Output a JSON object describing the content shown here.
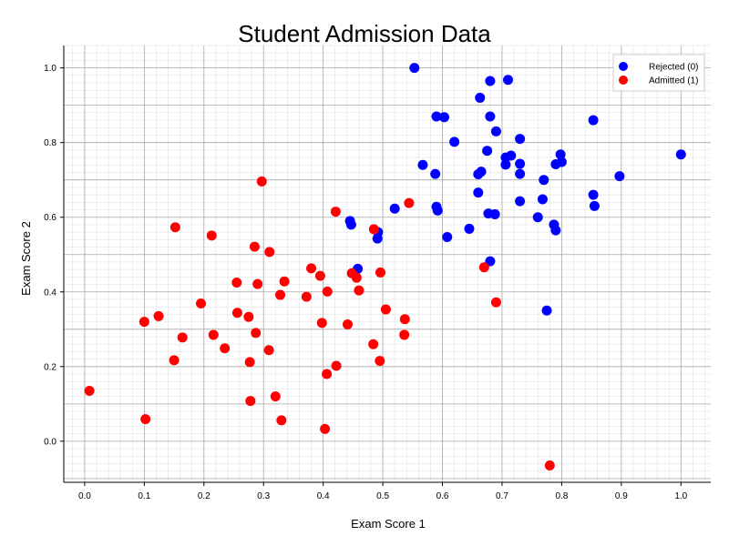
{
  "chart_data": {
    "type": "scatter",
    "title": "Student Admission Data",
    "xlabel": "Exam Score 1",
    "ylabel": "Exam Score 2",
    "xlim": [
      -0.035,
      1.05
    ],
    "ylim": [
      -0.11,
      1.06
    ],
    "xticks": [
      0.0,
      0.1,
      0.2,
      0.3,
      0.4,
      0.5,
      0.6,
      0.7,
      0.8,
      0.9,
      1.0
    ],
    "yticks": [
      0.0,
      0.2,
      0.4,
      0.6,
      0.8,
      1.0
    ],
    "xtick_labels": [
      "0.0",
      "0.1",
      "0.2",
      "0.3",
      "0.4",
      "0.5",
      "0.6",
      "0.7",
      "0.8",
      "0.9",
      "1.0"
    ],
    "ytick_labels": [
      "0.0",
      "0.2",
      "0.4",
      "0.6",
      "0.8",
      "1.0"
    ],
    "grid": true,
    "minor_grid": true,
    "legend_position": "top-right",
    "series": [
      {
        "name": "Rejected (0)",
        "color": "#0000ff",
        "points": [
          [
            0.553,
            1.0
          ],
          [
            0.68,
            0.965
          ],
          [
            0.71,
            0.968
          ],
          [
            0.663,
            0.92
          ],
          [
            0.59,
            0.87
          ],
          [
            0.603,
            0.868
          ],
          [
            0.68,
            0.87
          ],
          [
            0.69,
            0.83
          ],
          [
            0.853,
            0.86
          ],
          [
            0.62,
            0.802
          ],
          [
            0.73,
            0.81
          ],
          [
            0.675,
            0.778
          ],
          [
            0.706,
            0.76
          ],
          [
            0.715,
            0.765
          ],
          [
            0.73,
            0.743
          ],
          [
            0.706,
            0.741
          ],
          [
            0.798,
            0.768
          ],
          [
            0.8,
            0.748
          ],
          [
            0.79,
            0.742
          ],
          [
            0.567,
            0.74
          ],
          [
            0.665,
            0.722
          ],
          [
            0.66,
            0.715
          ],
          [
            0.588,
            0.716
          ],
          [
            0.73,
            0.716
          ],
          [
            0.77,
            0.7
          ],
          [
            0.897,
            0.71
          ],
          [
            1.0,
            0.768
          ],
          [
            0.66,
            0.666
          ],
          [
            0.853,
            0.66
          ],
          [
            0.768,
            0.648
          ],
          [
            0.73,
            0.643
          ],
          [
            0.855,
            0.63
          ],
          [
            0.59,
            0.628
          ],
          [
            0.592,
            0.618
          ],
          [
            0.52,
            0.623
          ],
          [
            0.677,
            0.61
          ],
          [
            0.688,
            0.608
          ],
          [
            0.76,
            0.6
          ],
          [
            0.445,
            0.59
          ],
          [
            0.447,
            0.58
          ],
          [
            0.787,
            0.58
          ],
          [
            0.79,
            0.565
          ],
          [
            0.645,
            0.569
          ],
          [
            0.492,
            0.56
          ],
          [
            0.491,
            0.543
          ],
          [
            0.608,
            0.547
          ],
          [
            0.68,
            0.482
          ],
          [
            0.458,
            0.462
          ],
          [
            0.775,
            0.35
          ]
        ]
      },
      {
        "name": "Admitted (1)",
        "color": "#ff0000",
        "points": [
          [
            0.297,
            0.696
          ],
          [
            0.152,
            0.573
          ],
          [
            0.213,
            0.551
          ],
          [
            0.421,
            0.615
          ],
          [
            0.544,
            0.638
          ],
          [
            0.485,
            0.568
          ],
          [
            0.285,
            0.521
          ],
          [
            0.31,
            0.507
          ],
          [
            0.38,
            0.463
          ],
          [
            0.395,
            0.443
          ],
          [
            0.448,
            0.45
          ],
          [
            0.456,
            0.438
          ],
          [
            0.496,
            0.452
          ],
          [
            0.255,
            0.425
          ],
          [
            0.29,
            0.421
          ],
          [
            0.335,
            0.428
          ],
          [
            0.407,
            0.401
          ],
          [
            0.46,
            0.404
          ],
          [
            0.328,
            0.392
          ],
          [
            0.372,
            0.387
          ],
          [
            0.195,
            0.369
          ],
          [
            0.69,
            0.372
          ],
          [
            0.67,
            0.466
          ],
          [
            0.256,
            0.344
          ],
          [
            0.124,
            0.335
          ],
          [
            0.275,
            0.333
          ],
          [
            0.1,
            0.32
          ],
          [
            0.398,
            0.317
          ],
          [
            0.441,
            0.313
          ],
          [
            0.505,
            0.353
          ],
          [
            0.537,
            0.327
          ],
          [
            0.287,
            0.29
          ],
          [
            0.164,
            0.278
          ],
          [
            0.216,
            0.285
          ],
          [
            0.536,
            0.285
          ],
          [
            0.484,
            0.26
          ],
          [
            0.235,
            0.249
          ],
          [
            0.309,
            0.244
          ],
          [
            0.15,
            0.217
          ],
          [
            0.277,
            0.212
          ],
          [
            0.495,
            0.215
          ],
          [
            0.422,
            0.202
          ],
          [
            0.406,
            0.18
          ],
          [
            0.008,
            0.135
          ],
          [
            0.32,
            0.12
          ],
          [
            0.278,
            0.108
          ],
          [
            0.102,
            0.059
          ],
          [
            0.33,
            0.056
          ],
          [
            0.403,
            0.033
          ],
          [
            0.78,
            -0.065
          ]
        ]
      }
    ]
  }
}
